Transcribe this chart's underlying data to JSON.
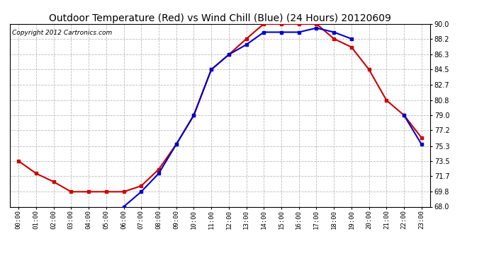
{
  "title": "Outdoor Temperature (Red) vs Wind Chill (Blue) (24 Hours) 20120609",
  "copyright": "Copyright 2012 Cartronics.com",
  "hours": [
    "00:00",
    "01:00",
    "02:00",
    "03:00",
    "04:00",
    "05:00",
    "06:00",
    "07:00",
    "08:00",
    "09:00",
    "10:00",
    "11:00",
    "12:00",
    "13:00",
    "14:00",
    "15:00",
    "16:00",
    "17:00",
    "18:00",
    "19:00",
    "20:00",
    "21:00",
    "22:00",
    "23:00"
  ],
  "temp_red": [
    73.5,
    72.0,
    71.0,
    69.8,
    69.8,
    69.8,
    69.8,
    70.5,
    72.5,
    75.5,
    79.0,
    84.5,
    86.3,
    88.2,
    90.0,
    90.0,
    90.0,
    90.0,
    88.2,
    87.2,
    84.5,
    80.8,
    79.0,
    76.3
  ],
  "wind_chill_blue": [
    null,
    null,
    null,
    null,
    null,
    null,
    68.0,
    69.8,
    72.0,
    75.5,
    79.0,
    84.5,
    86.3,
    87.5,
    89.0,
    89.0,
    89.0,
    89.5,
    89.0,
    88.2,
    null,
    null,
    79.0,
    75.5
  ],
  "ylim": [
    68.0,
    90.0
  ],
  "yticks": [
    68.0,
    69.8,
    71.7,
    73.5,
    75.3,
    77.2,
    79.0,
    80.8,
    82.7,
    84.5,
    86.3,
    88.2,
    90.0
  ],
  "red_color": "#cc0000",
  "blue_color": "#0000cc",
  "bg_color": "#ffffff",
  "grid_color": "#bbbbbb",
  "title_fontsize": 10,
  "copyright_fontsize": 6.5
}
